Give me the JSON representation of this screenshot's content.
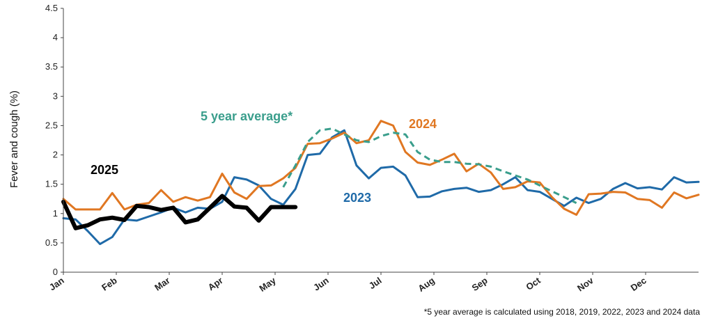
{
  "chart_data": {
    "type": "line",
    "ylabel": "Fever and cough (%)",
    "ylim": [
      0,
      4.5
    ],
    "yticks": [
      "0",
      "0.5",
      "1",
      "1.5",
      "2",
      "2.5",
      "3",
      "3.5",
      "4",
      "4.5"
    ],
    "months": [
      "Jan",
      "Feb",
      "Mar",
      "Apr",
      "May",
      "Jun",
      "Jul",
      "Aug",
      "Sep",
      "Oct",
      "Nov",
      "Dec"
    ],
    "x_unit": "week of year",
    "xlim": [
      1,
      53
    ],
    "footnote": "*5 year average is calculated using 2018, 2019, 2022, 2023 and 2024 data",
    "series": [
      {
        "name": "2023",
        "label": "2023",
        "color": "#1f6aa8",
        "x": [
          1,
          2,
          3,
          4,
          5,
          6,
          7,
          8,
          9,
          10,
          11,
          12,
          13,
          14,
          15,
          16,
          17,
          18,
          19,
          20,
          21,
          22,
          23,
          24,
          25,
          26,
          27,
          28,
          29,
          30,
          31,
          32,
          33,
          34,
          35,
          36,
          37,
          38,
          39,
          40,
          41,
          42,
          43,
          44,
          45,
          46,
          47,
          48,
          49,
          50,
          51,
          52,
          53
        ],
        "values": [
          0.92,
          0.9,
          0.7,
          0.48,
          0.6,
          0.9,
          0.88,
          0.95,
          1.02,
          1.1,
          1.02,
          1.1,
          1.08,
          1.2,
          1.62,
          1.58,
          1.48,
          1.25,
          1.15,
          1.42,
          2.0,
          2.02,
          2.3,
          2.42,
          1.82,
          1.6,
          1.78,
          1.8,
          1.65,
          1.28,
          1.29,
          1.38,
          1.42,
          1.44,
          1.37,
          1.4,
          1.5,
          1.62,
          1.4,
          1.37,
          1.25,
          1.13,
          1.27,
          1.18,
          1.25,
          1.42,
          1.52,
          1.43,
          1.45,
          1.41,
          1.62,
          1.53,
          1.54
        ]
      },
      {
        "name": "2024",
        "label": "2024",
        "color": "#e07722",
        "x": [
          1,
          2,
          3,
          4,
          5,
          6,
          7,
          8,
          9,
          10,
          11,
          12,
          13,
          14,
          15,
          16,
          17,
          18,
          19,
          20,
          21,
          22,
          23,
          24,
          25,
          26,
          27,
          28,
          29,
          30,
          31,
          32,
          33,
          34,
          35,
          36,
          37,
          38,
          39,
          40,
          41,
          42,
          43,
          44,
          45,
          46,
          47,
          48,
          49,
          50,
          51,
          52,
          53
        ],
        "values": [
          1.25,
          1.07,
          1.07,
          1.07,
          1.35,
          1.07,
          1.15,
          1.18,
          1.4,
          1.2,
          1.28,
          1.22,
          1.28,
          1.68,
          1.36,
          1.25,
          1.47,
          1.48,
          1.6,
          1.78,
          2.19,
          2.2,
          2.28,
          2.38,
          2.2,
          2.25,
          2.58,
          2.5,
          2.05,
          1.87,
          1.83,
          1.92,
          2.02,
          1.72,
          1.85,
          1.7,
          1.42,
          1.45,
          1.55,
          1.53,
          1.28,
          1.08,
          0.98,
          1.33,
          1.34,
          1.37,
          1.36,
          1.25,
          1.23,
          1.1,
          1.36,
          1.26,
          1.32
        ]
      },
      {
        "name": "5 year average*",
        "label": "5 year average*",
        "color": "#3a9e8c",
        "dashed": true,
        "x": [
          19,
          20,
          21,
          22,
          23,
          24,
          25,
          26,
          27,
          28,
          29,
          30,
          31,
          32,
          33,
          34,
          35,
          36,
          37,
          38,
          39,
          40,
          41,
          42,
          43
        ],
        "values": [
          1.45,
          1.82,
          2.22,
          2.42,
          2.45,
          2.35,
          2.25,
          2.22,
          2.32,
          2.38,
          2.35,
          2.05,
          1.92,
          1.88,
          1.88,
          1.85,
          1.84,
          1.8,
          1.72,
          1.65,
          1.58,
          1.48,
          1.38,
          1.28,
          1.18
        ]
      },
      {
        "name": "2025",
        "label": "2025",
        "color": "#000000",
        "thick": true,
        "x": [
          1,
          2,
          3,
          4,
          5,
          6,
          7,
          8,
          9,
          10,
          11,
          12,
          13,
          14,
          15,
          16,
          17,
          18,
          19,
          20
        ],
        "values": [
          1.2,
          0.75,
          0.8,
          0.9,
          0.93,
          0.89,
          1.13,
          1.11,
          1.06,
          1.1,
          0.85,
          0.9,
          1.1,
          1.3,
          1.12,
          1.1,
          0.88,
          1.11,
          1.11,
          1.11
        ]
      }
    ]
  }
}
